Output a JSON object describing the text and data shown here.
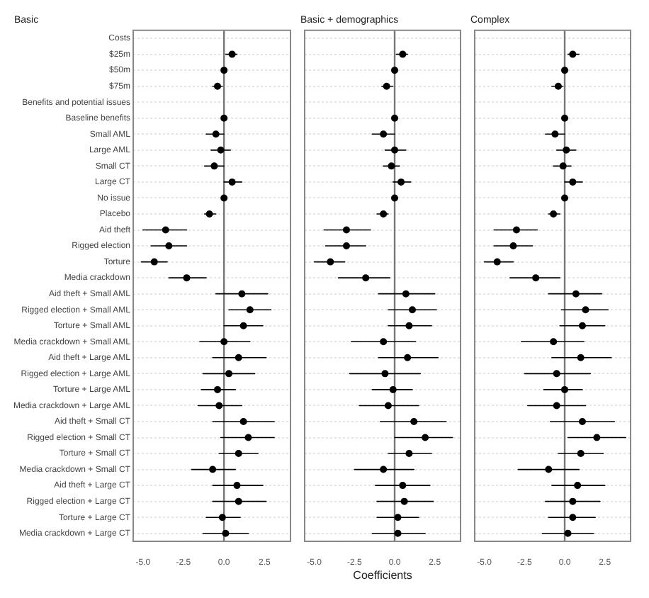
{
  "chart_data": [
    {
      "type": "scatter",
      "title": "Basic",
      "orientation": "horizontal",
      "marker": "circle",
      "grid": "y",
      "legend": false,
      "color": "#000000",
      "categories": [
        "Costs",
        "$25m",
        "$50m",
        "$75m",
        "Benefits and potential issues",
        "Baseline benefits",
        "Small AML",
        "Large AML",
        "Small CT",
        "Large CT",
        "No issue",
        "Placebo",
        "Aid theft",
        "Rigged election",
        "Torture",
        "Media crackdown",
        "Aid theft + Small AML",
        "Rigged election + Small AML",
        "Torture + Small AML",
        "Media crackdown + Small AML",
        "Aid theft + Large AML",
        "Rigged election + Large AML",
        "Torture + Large AML",
        "Media crackdown + Large AML",
        "Aid theft + Small CT",
        "Rigged election + Small CT",
        "Torture + Small CT",
        "Media crackdown + Small CT",
        "Aid theft + Large CT",
        "Rigged election + Large CT",
        "Torture + Large CT",
        "Media crackdown + Large CT"
      ],
      "values": [
        null,
        0.5,
        0,
        -0.4,
        null,
        0,
        -0.5,
        -0.2,
        -0.6,
        0.5,
        0,
        -0.9,
        -3.6,
        -3.4,
        -4.3,
        -2.3,
        1.1,
        1.6,
        1.2,
        0,
        0.9,
        0.3,
        -0.4,
        -0.3,
        1.2,
        1.5,
        0.9,
        -0.7,
        0.8,
        0.9,
        -0.1,
        0.1
      ],
      "errors": [
        null,
        [
          0.1,
          0.8
        ],
        null,
        [
          -0.7,
          -0.1
        ],
        null,
        null,
        [
          -1.1,
          0
        ],
        [
          -0.8,
          0.4
        ],
        [
          -1.2,
          0
        ],
        [
          0,
          1.1
        ],
        null,
        [
          -1.2,
          -0.5
        ],
        [
          -5,
          -2.3
        ],
        [
          -4.5,
          -2.3
        ],
        [
          -5.1,
          -3.5
        ],
        [
          -3.4,
          -1.1
        ],
        [
          -0.5,
          2.7
        ],
        [
          0.3,
          2.9
        ],
        [
          0,
          2.4
        ],
        [
          -1.5,
          1.6
        ],
        [
          -0.7,
          2.6
        ],
        [
          -1.3,
          1.9
        ],
        [
          -1.4,
          0.7
        ],
        [
          -1.6,
          1.1
        ],
        [
          -0.7,
          3.1
        ],
        [
          -0.2,
          3.1
        ],
        [
          -0.3,
          2.1
        ],
        [
          -2,
          0.7
        ],
        [
          -0.7,
          2.4
        ],
        [
          -0.7,
          2.6
        ],
        [
          -1.1,
          1
        ],
        [
          -1.3,
          1.5
        ]
      ],
      "xlim": [
        -5.6,
        4.1
      ],
      "xticks": [
        {
          "value": -5,
          "label": "-5.0"
        },
        {
          "value": -2.5,
          "label": "-2.5"
        },
        {
          "value": 0,
          "label": "0.0"
        },
        {
          "value": 2.5,
          "label": "2.5"
        }
      ],
      "ref_lines": [
        {
          "axis": "x",
          "value": 0,
          "color": "#777777"
        }
      ]
    },
    {
      "type": "scatter",
      "title": "Basic + demographics",
      "xlabel": "Coefficients",
      "orientation": "horizontal",
      "marker": "circle",
      "grid": "y",
      "legend": false,
      "color": "#000000",
      "tick_labels": "x",
      "categories": [
        null,
        null,
        null,
        null,
        null,
        null,
        null,
        null,
        null,
        null,
        null,
        null,
        null,
        null,
        null,
        null,
        null,
        null,
        null,
        null,
        null,
        null,
        null,
        null,
        null,
        null,
        null,
        null,
        null,
        null,
        null,
        null
      ],
      "values": [
        null,
        0.5,
        0,
        -0.5,
        null,
        0,
        -0.7,
        0,
        -0.2,
        0.4,
        0,
        -0.7,
        -3,
        -3,
        -4,
        -1.8,
        0.7,
        1.1,
        0.9,
        -0.7,
        0.8,
        -0.6,
        -0.1,
        -0.4,
        1.2,
        1.9,
        0.9,
        -0.7,
        0.5,
        0.6,
        0.2,
        0.2
      ],
      "errors": [
        null,
        [
          0.1,
          0.8
        ],
        null,
        [
          -0.8,
          -0.1
        ],
        null,
        null,
        [
          -1.4,
          0
        ],
        [
          -0.6,
          0.7
        ],
        [
          -0.7,
          0.3
        ],
        [
          -0.1,
          1
        ],
        null,
        [
          -1.1,
          -0.4
        ],
        [
          -4.4,
          -1.5
        ],
        [
          -4.3,
          -1.8
        ],
        [
          -5,
          -3.1
        ],
        [
          -3.5,
          -0.3
        ],
        [
          -1,
          2.5
        ],
        [
          -0.4,
          2.6
        ],
        [
          -0.4,
          2.3
        ],
        [
          -2.7,
          1.3
        ],
        [
          -1,
          2.7
        ],
        [
          -2.8,
          1.6
        ],
        [
          -1.4,
          1.1
        ],
        [
          -2.2,
          1.5
        ],
        [
          -0.9,
          3.2
        ],
        [
          0,
          3.6
        ],
        [
          -0.4,
          2.3
        ],
        [
          -2.5,
          1.2
        ],
        [
          -1.2,
          2.2
        ],
        [
          -1.1,
          2.4
        ],
        [
          -1.1,
          1.5
        ],
        [
          -1.4,
          1.9
        ]
      ],
      "xlim": [
        -5.6,
        4.1
      ],
      "xticks": [
        {
          "value": -5,
          "label": "-5.0"
        },
        {
          "value": -2.5,
          "label": "-2.5"
        },
        {
          "value": 0,
          "label": "0.0"
        },
        {
          "value": 2.5,
          "label": "2.5"
        }
      ],
      "ref_lines": [
        {
          "axis": "x",
          "value": 0,
          "color": "#777777"
        }
      ]
    },
    {
      "type": "scatter",
      "title": "Complex",
      "orientation": "horizontal",
      "marker": "circle",
      "grid": "y",
      "legend": false,
      "color": "#000000",
      "tick_labels": "x",
      "categories": [
        null,
        null,
        null,
        null,
        null,
        null,
        null,
        null,
        null,
        null,
        null,
        null,
        null,
        null,
        null,
        null,
        null,
        null,
        null,
        null,
        null,
        null,
        null,
        null,
        null,
        null,
        null,
        null,
        null,
        null,
        null,
        null
      ],
      "values": [
        null,
        0.5,
        0,
        -0.4,
        null,
        0,
        -0.6,
        0.1,
        -0.1,
        0.5,
        0,
        -0.7,
        -3,
        -3.2,
        -4.2,
        -1.8,
        0.7,
        1.3,
        1.1,
        -0.7,
        1,
        -0.5,
        0,
        -0.5,
        1.1,
        2,
        1,
        -1,
        0.8,
        0.5,
        0.5,
        0.2
      ],
      "errors": [
        null,
        [
          0.2,
          0.9
        ],
        null,
        [
          -0.8,
          -0.1
        ],
        null,
        null,
        [
          -1.2,
          0
        ],
        [
          -0.5,
          0.7
        ],
        [
          -0.7,
          0.4
        ],
        [
          0,
          1.1
        ],
        null,
        [
          -1,
          -0.3
        ],
        [
          -4.4,
          -1.7
        ],
        [
          -4.4,
          -2
        ],
        [
          -5,
          -3.2
        ],
        [
          -3.4,
          -0.3
        ],
        [
          -1,
          2.3
        ],
        [
          -0.2,
          2.7
        ],
        [
          -0.3,
          2.5
        ],
        [
          -2.7,
          1.2
        ],
        [
          -0.8,
          2.9
        ],
        [
          -2.5,
          1.6
        ],
        [
          -1.3,
          1.1
        ],
        [
          -2.3,
          1.3
        ],
        [
          -0.9,
          3.1
        ],
        [
          0.2,
          3.8
        ],
        [
          -0.4,
          2.4
        ],
        [
          -2.9,
          0.9
        ],
        [
          -0.8,
          2.5
        ],
        [
          -1.2,
          2.2
        ],
        [
          -1,
          1.9
        ],
        [
          -1.4,
          1.8
        ]
      ],
      "xlim": [
        -5.6,
        4.1
      ],
      "xticks": [
        {
          "value": -5,
          "label": "-5.0"
        },
        {
          "value": -2.5,
          "label": "-2.5"
        },
        {
          "value": 0,
          "label": "0.0"
        },
        {
          "value": 2.5,
          "label": "2.5"
        }
      ],
      "ref_lines": [
        {
          "axis": "x",
          "value": 0,
          "color": "#777777"
        }
      ]
    }
  ]
}
